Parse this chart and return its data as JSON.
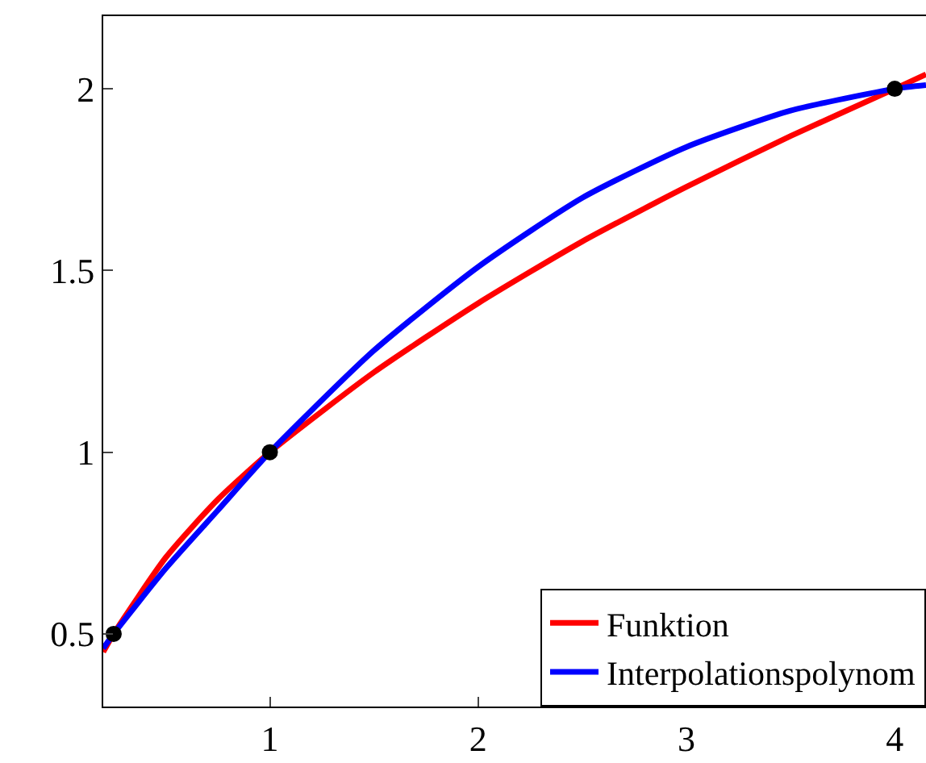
{
  "chart_data": {
    "type": "line",
    "xlim": [
      0.2,
      4.15
    ],
    "ylim": [
      0.3,
      2.2
    ],
    "xticks": [
      1,
      2,
      3,
      4
    ],
    "yticks": [
      0.5,
      1,
      1.5,
      2
    ],
    "legend": "bottom right",
    "marker": "none",
    "line_style": "solid",
    "series": [
      {
        "name": "Funktion",
        "color": "#ff0000",
        "x": [
          0.2,
          0.25,
          0.5,
          0.75,
          1,
          1.5,
          2,
          2.5,
          3,
          3.5,
          4,
          4.15
        ],
        "values": [
          0.45,
          0.5,
          0.71,
          0.87,
          1,
          1.22,
          1.41,
          1.58,
          1.73,
          1.87,
          2,
          2.04
        ]
      },
      {
        "name": "Interpolationspolynom",
        "color": "#0000ff",
        "x": [
          0.2,
          0.25,
          0.5,
          0.75,
          1,
          1.5,
          2,
          2.5,
          3,
          3.5,
          4,
          4.15
        ],
        "values": [
          0.46,
          0.5,
          0.68,
          0.84,
          1,
          1.28,
          1.51,
          1.7,
          1.84,
          1.94,
          2,
          2.01
        ]
      },
      {
        "type": "scatter",
        "color": "#000000",
        "marker": "circle",
        "x": [
          0.25,
          1,
          4
        ],
        "values": [
          0.5,
          1,
          2
        ]
      }
    ]
  }
}
